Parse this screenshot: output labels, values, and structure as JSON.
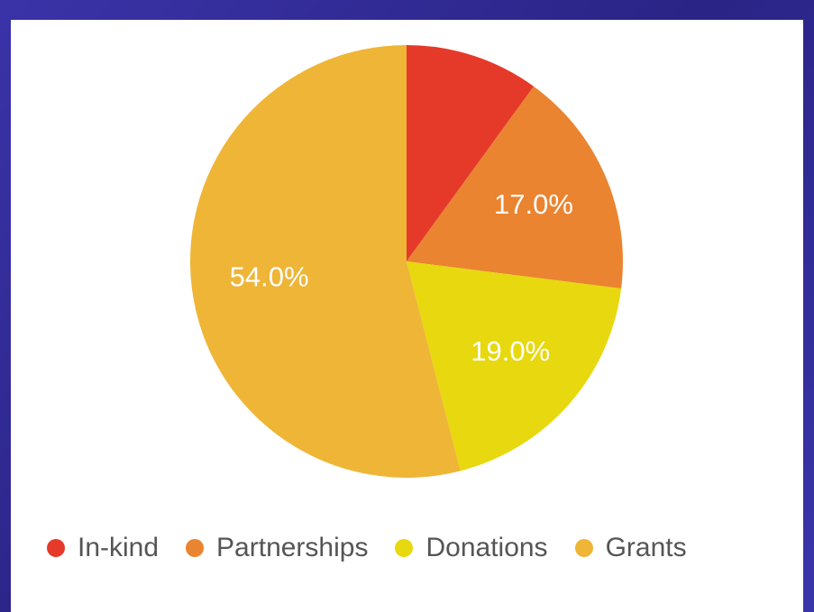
{
  "chart_data": {
    "type": "pie",
    "slices": [
      {
        "label": "In-kind",
        "value": 10.0,
        "display": "",
        "color": "#e53a2a"
      },
      {
        "label": "Partnerships",
        "value": 17.0,
        "display": "17.0%",
        "color": "#ea8430"
      },
      {
        "label": "Donations",
        "value": 19.0,
        "display": "19.0%",
        "color": "#e8d80f"
      },
      {
        "label": "Grants",
        "value": 54.0,
        "display": "54.0%",
        "color": "#efb537"
      }
    ],
    "legend_position": "bottom"
  },
  "legend": [
    {
      "label": "In-kind",
      "color": "#e53a2a"
    },
    {
      "label": "Partnerships",
      "color": "#ea8430"
    },
    {
      "label": "Donations",
      "color": "#e8d80f"
    },
    {
      "label": "Grants",
      "color": "#efb537"
    }
  ]
}
